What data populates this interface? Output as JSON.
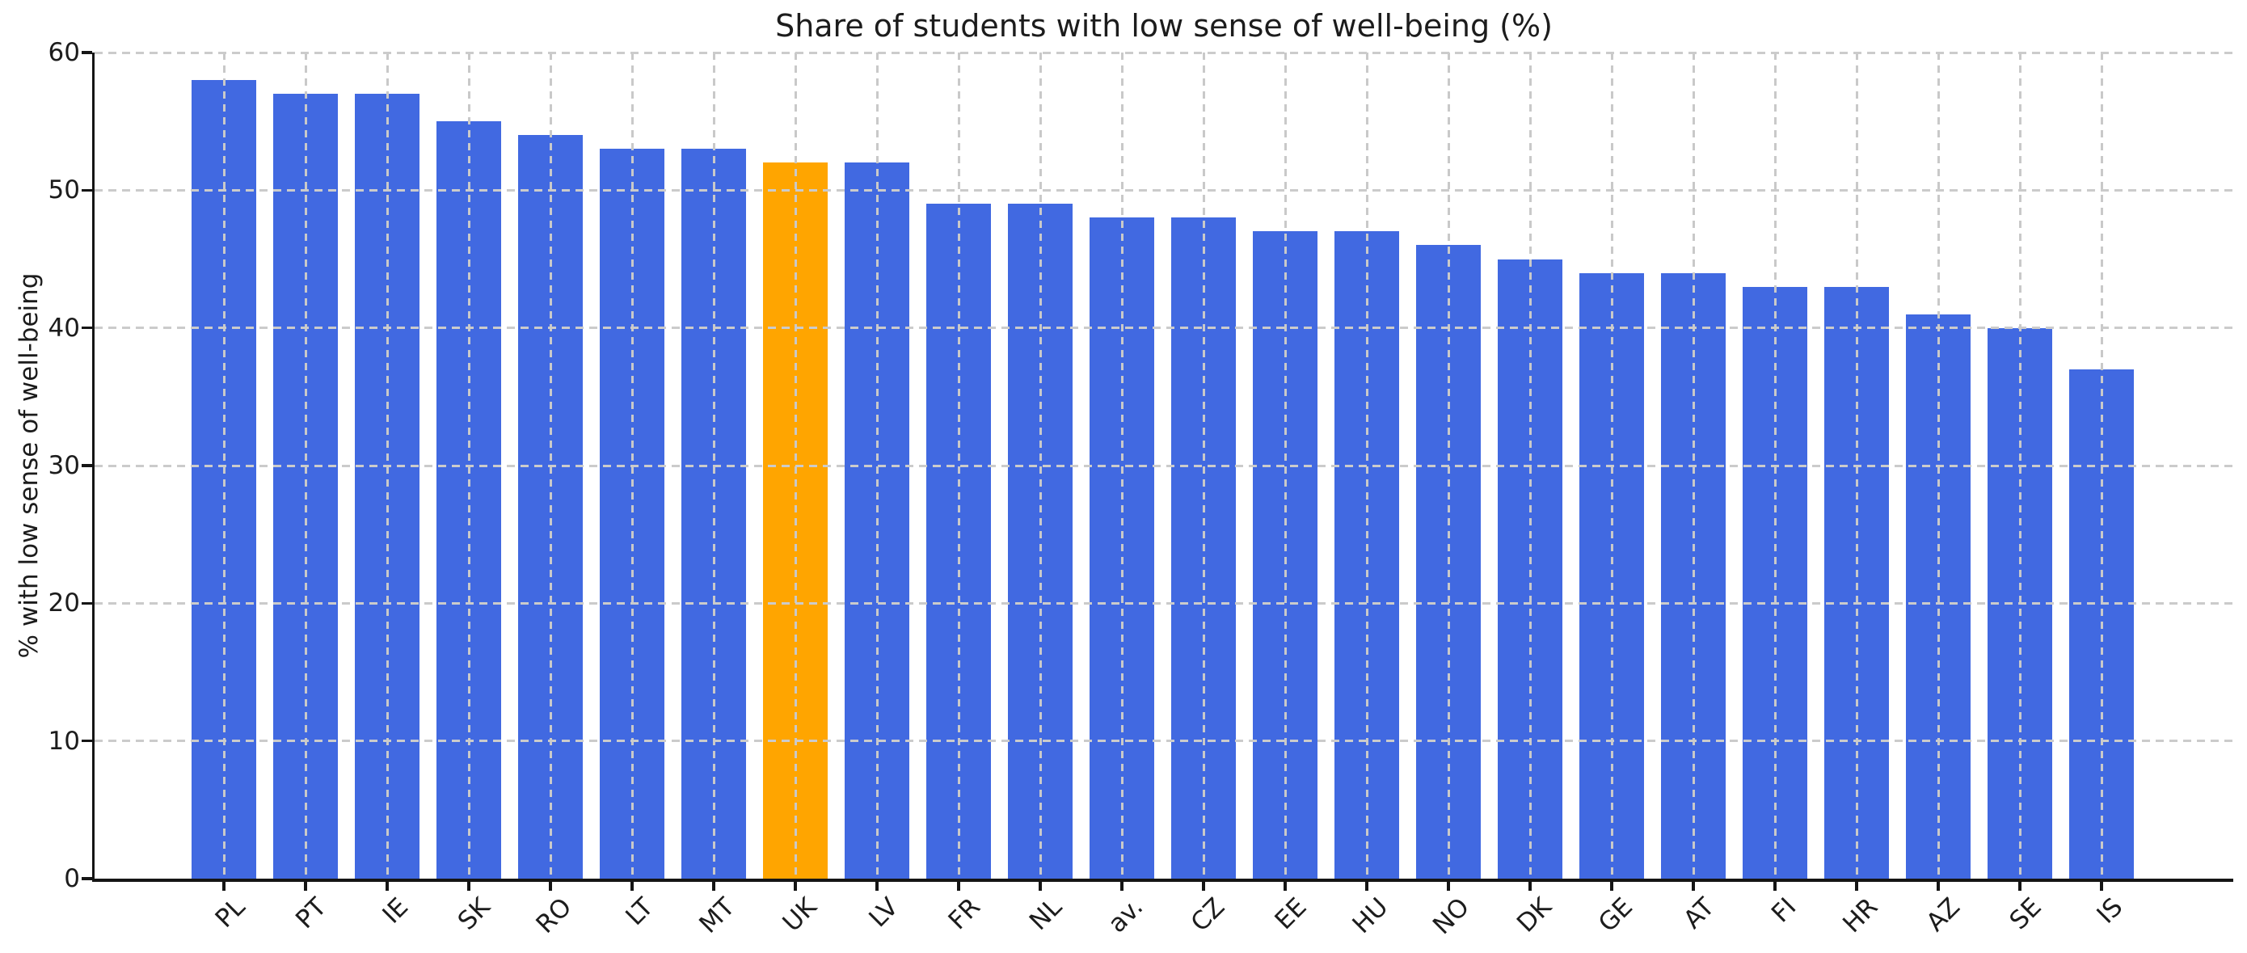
{
  "chart_data": {
    "type": "bar",
    "title": "Share of students with low sense of well-being (%)",
    "xlabel": "",
    "ylabel": "% with low sense of well-being",
    "categories": [
      "PL",
      "PT",
      "IE",
      "SK",
      "RO",
      "LT",
      "MT",
      "UK",
      "LV",
      "FR",
      "NL",
      "av.",
      "CZ",
      "EE",
      "HU",
      "NO",
      "DK",
      "GE",
      "AT",
      "FI",
      "HR",
      "AZ",
      "SE",
      "IS"
    ],
    "values": [
      58,
      57,
      57,
      55,
      54,
      53,
      53,
      52,
      52,
      49,
      49,
      48,
      48,
      47,
      47,
      46,
      45,
      44,
      44,
      43,
      43,
      41,
      40,
      37
    ],
    "highlight_category": "UK",
    "bar_color": "#4169E1",
    "highlight_color": "#FFA500",
    "ylim": [
      0,
      60
    ],
    "yticks": [
      0,
      10,
      20,
      30,
      40,
      50,
      60
    ],
    "grid": "dashed, horizontal and vertical, drawn over bars",
    "legend": "none"
  }
}
